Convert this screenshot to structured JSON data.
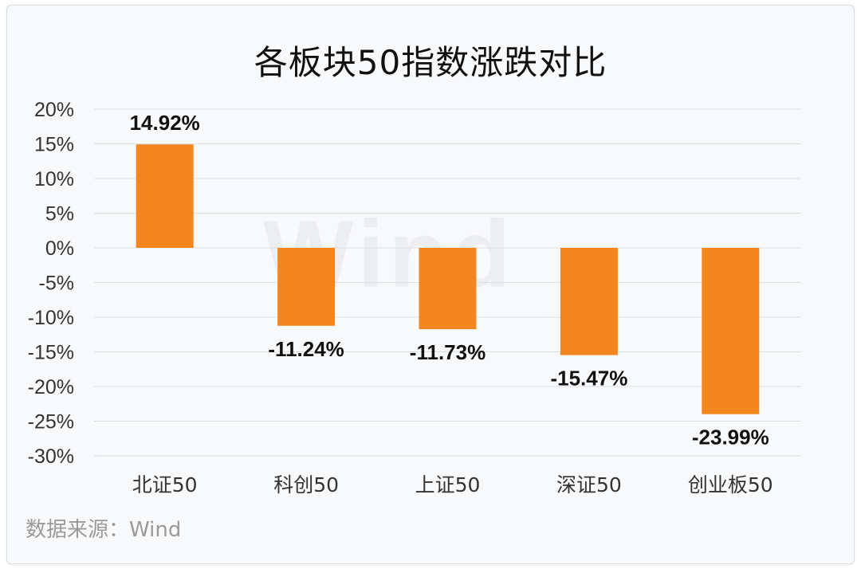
{
  "chart_data": {
    "type": "bar",
    "title": "各板块50指数涨跌对比",
    "categories": [
      "北证50",
      "科创50",
      "上证50",
      "深证50",
      "创业板50"
    ],
    "values": [
      14.92,
      -11.24,
      -11.73,
      -15.47,
      -23.99
    ],
    "data_labels": [
      "14.92%",
      "-11.24%",
      "-11.73%",
      "-15.47%",
      "-23.99%"
    ],
    "ylim": [
      -30,
      20
    ],
    "yticks": [
      20,
      15,
      10,
      5,
      0,
      -5,
      -10,
      -15,
      -20,
      -25,
      -30
    ],
    "ytick_labels": [
      "20%",
      "15%",
      "10%",
      "5%",
      "0%",
      "-5%",
      "-10%",
      "-15%",
      "-20%",
      "-25%",
      "-30%"
    ],
    "bar_color": "#f4861f",
    "grid": true,
    "legend": "none"
  },
  "source_text": "数据来源：Wind",
  "watermark": "Wind"
}
